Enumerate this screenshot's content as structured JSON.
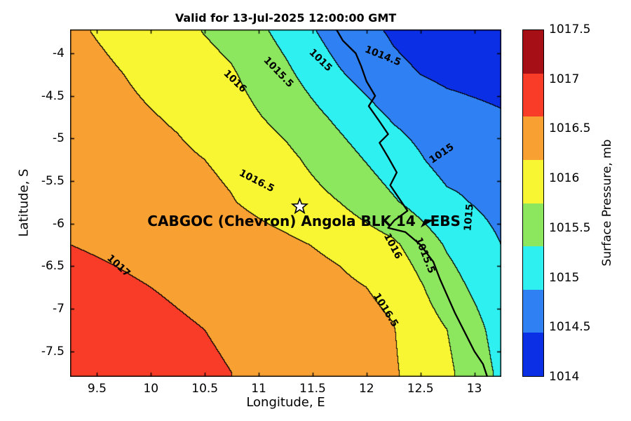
{
  "chart_data": {
    "type": "heatmap",
    "subtype": "filled_contour_map",
    "title": "Valid for 13-Jul-2025 12:00:00 GMT",
    "xlabel": "Longitude, E",
    "ylabel": "Latitude, S",
    "colorbar_label": "Surface Pressure, mb",
    "xlim": [
      9.25,
      13.25
    ],
    "ylim": [
      -7.8,
      -3.72
    ],
    "x_ticks": [
      9.5,
      10,
      10.5,
      11,
      11.5,
      12,
      12.5,
      13
    ],
    "y_ticks": [
      -4,
      -4.5,
      -5,
      -5.5,
      -6,
      -6.5,
      -7,
      -7.5
    ],
    "levels": [
      1014,
      1014.5,
      1015,
      1015.5,
      1016,
      1016.5,
      1017,
      1017.5
    ],
    "band_colors": [
      "#0a2fe4",
      "#2f80f2",
      "#2ff0f0",
      "#8ce65e",
      "#f8f532",
      "#f8a132",
      "#f83c28"
    ],
    "colorbar_colors_top_to_bottom": [
      "#a50f15",
      "#f83c28",
      "#f8a132",
      "#f8f532",
      "#8ce65e",
      "#2ff0f0",
      "#2f80f2",
      "#0a2fe4"
    ],
    "colorbar_ticks": [
      1017.5,
      1017,
      1016.5,
      1016,
      1015.5,
      1015,
      1014.5,
      1014
    ],
    "colorbar_range": [
      1014,
      1017.5
    ],
    "grid": {
      "lons": [
        9.25,
        9.75,
        10.25,
        10.75,
        11.25,
        11.75,
        12.25,
        12.75,
        13.25
      ],
      "lats": [
        -3.75,
        -4.25,
        -4.75,
        -5.25,
        -5.75,
        -6.25,
        -6.75,
        -7.25,
        -7.75
      ],
      "pressure_mb": [
        [
          1016.55,
          1016.42,
          1016.12,
          1015.85,
          1015.35,
          1014.75,
          1014.45,
          1014.25,
          1014.1
        ],
        [
          1016.62,
          1016.5,
          1016.3,
          1016.05,
          1015.6,
          1015.05,
          1014.6,
          1014.4,
          1014.3
        ],
        [
          1016.72,
          1016.6,
          1016.45,
          1016.2,
          1015.85,
          1015.4,
          1014.95,
          1014.7,
          1014.55
        ],
        [
          1016.82,
          1016.7,
          1016.58,
          1016.42,
          1016.12,
          1015.7,
          1015.25,
          1014.82,
          1014.85
        ],
        [
          1016.9,
          1016.8,
          1016.68,
          1016.52,
          1016.3,
          1016.0,
          1015.55,
          1015.1,
          1014.85
        ],
        [
          1017.0,
          1016.92,
          1016.82,
          1016.72,
          1016.58,
          1016.4,
          1016.08,
          1015.45,
          1015.0
        ],
        [
          1017.15,
          1017.05,
          1016.95,
          1016.85,
          1016.75,
          1016.6,
          1016.4,
          1015.7,
          1015.15
        ],
        [
          1017.25,
          1017.16,
          1017.05,
          1016.95,
          1016.8,
          1016.7,
          1016.52,
          1016.0,
          1015.3
        ],
        [
          1017.35,
          1017.25,
          1017.1,
          1017.0,
          1016.85,
          1016.7,
          1016.55,
          1016.1,
          1015.4
        ]
      ]
    },
    "contour_labels": [
      {
        "text": "1016",
        "lon": 10.78,
        "lat": -4.33,
        "rot": 44
      },
      {
        "text": "1015.5",
        "lon": 11.18,
        "lat": -4.22,
        "rot": 46
      },
      {
        "text": "1015",
        "lon": 11.57,
        "lat": -4.08,
        "rot": 44
      },
      {
        "text": "1014.5",
        "lon": 12.15,
        "lat": -4.03,
        "rot": 22
      },
      {
        "text": "1015",
        "lon": 12.7,
        "lat": -5.18,
        "rot": -34
      },
      {
        "text": "1015",
        "lon": 12.95,
        "lat": -5.93,
        "rot": -85
      },
      {
        "text": "1016.5",
        "lon": 10.98,
        "lat": -5.5,
        "rot": 27
      },
      {
        "text": "1017",
        "lon": 9.7,
        "lat": -6.5,
        "rot": 42
      },
      {
        "text": "1016",
        "lon": 12.24,
        "lat": -6.27,
        "rot": 62
      },
      {
        "text": "1015.5",
        "lon": 12.54,
        "lat": -6.37,
        "rot": 68
      },
      {
        "text": "1016.5",
        "lon": 12.18,
        "lat": -7.02,
        "rot": 58
      }
    ],
    "coastline": [
      [
        11.72,
        -3.72
      ],
      [
        11.78,
        -3.85
      ],
      [
        11.9,
        -4.0
      ],
      [
        11.95,
        -4.15
      ],
      [
        12.0,
        -4.33
      ],
      [
        12.08,
        -4.5
      ],
      [
        12.02,
        -4.62
      ],
      [
        12.12,
        -4.8
      ],
      [
        12.2,
        -4.95
      ],
      [
        12.12,
        -5.05
      ],
      [
        12.2,
        -5.22
      ],
      [
        12.28,
        -5.4
      ],
      [
        12.22,
        -5.55
      ],
      [
        12.3,
        -5.7
      ],
      [
        12.38,
        -5.85
      ],
      [
        12.26,
        -5.96
      ],
      [
        12.2,
        -6.05
      ],
      [
        12.36,
        -6.1
      ],
      [
        12.5,
        -6.25
      ],
      [
        12.62,
        -6.45
      ],
      [
        12.68,
        -6.65
      ],
      [
        12.75,
        -6.85
      ],
      [
        12.82,
        -7.05
      ],
      [
        12.92,
        -7.3
      ],
      [
        13.0,
        -7.5
      ],
      [
        13.08,
        -7.65
      ],
      [
        13.12,
        -7.8
      ]
    ],
    "station": {
      "label": "CABGOC (Chevron) Angola BLK 14   EBS",
      "star": {
        "lon": 11.38,
        "lat": -5.8
      },
      "label_pos": {
        "lon": 11.42,
        "lat": -5.97
      },
      "arrow": {
        "lon": 12.56,
        "lat": -5.99
      }
    }
  }
}
